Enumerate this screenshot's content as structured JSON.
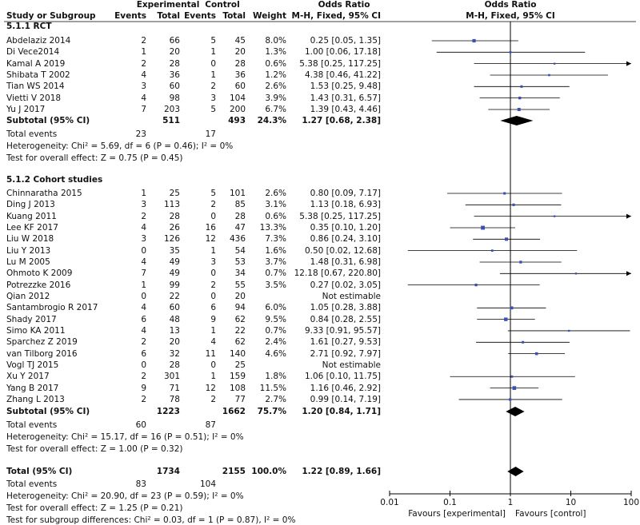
{
  "header": {
    "group_exp": "Experimental",
    "group_ctrl": "Control",
    "or_left": "Odds Ratio",
    "or_right": "Odds Ratio",
    "study": "Study or Subgroup",
    "events": "Events",
    "total": "Total",
    "weight": "Weight",
    "method": "M-H, Fixed, 95% CI"
  },
  "chart_data": {
    "type": "forest",
    "scale": "log",
    "xlim": [
      0.01,
      100
    ],
    "ticks": [
      "0.01",
      "0.1",
      "1",
      "10",
      "100"
    ],
    "xlabel_left": "Favours [experimental]",
    "xlabel_right": "Favours [control]",
    "subgroups": [
      {
        "title": "5.1.1 RCT",
        "studies": [
          {
            "name": "Abdelaziz 2014",
            "e_ev": "2",
            "e_tot": "66",
            "c_ev": "5",
            "c_tot": "45",
            "weight": "8.0%",
            "w": 8.0,
            "or": 0.25,
            "lo": 0.05,
            "hi": 1.35,
            "ci": "0.25 [0.05, 1.35]"
          },
          {
            "name": "Di Vece2014",
            "e_ev": "1",
            "e_tot": "20",
            "c_ev": "1",
            "c_tot": "20",
            "weight": "1.3%",
            "w": 1.3,
            "or": 1.0,
            "lo": 0.06,
            "hi": 17.18,
            "ci": "1.00 [0.06, 17.18]"
          },
          {
            "name": "Kamal A 2019",
            "e_ev": "2",
            "e_tot": "28",
            "c_ev": "0",
            "c_tot": "28",
            "weight": "0.6%",
            "w": 0.6,
            "or": 5.38,
            "lo": 0.25,
            "hi": 117.25,
            "ci": "5.38 [0.25, 117.25]"
          },
          {
            "name": "Shibata T 2002",
            "e_ev": "4",
            "e_tot": "36",
            "c_ev": "1",
            "c_tot": "36",
            "weight": "1.2%",
            "w": 1.2,
            "or": 4.38,
            "lo": 0.46,
            "hi": 41.22,
            "ci": "4.38 [0.46, 41.22]"
          },
          {
            "name": "Tian WS 2014",
            "e_ev": "3",
            "e_tot": "60",
            "c_ev": "2",
            "c_tot": "60",
            "weight": "2.6%",
            "w": 2.6,
            "or": 1.53,
            "lo": 0.25,
            "hi": 9.48,
            "ci": "1.53 [0.25, 9.48]"
          },
          {
            "name": "Vietti V 2018",
            "e_ev": "4",
            "e_tot": "98",
            "c_ev": "3",
            "c_tot": "104",
            "weight": "3.9%",
            "w": 3.9,
            "or": 1.43,
            "lo": 0.31,
            "hi": 6.57,
            "ci": "1.43 [0.31, 6.57]"
          },
          {
            "name": "Yu J 2017",
            "e_ev": "7",
            "e_tot": "203",
            "c_ev": "5",
            "c_tot": "200",
            "weight": "6.7%",
            "w": 6.7,
            "or": 1.39,
            "lo": 0.43,
            "hi": 4.46,
            "ci": "1.39 [0.43, 4.46]"
          }
        ],
        "subtotal": {
          "label": "Subtotal (95% CI)",
          "e_tot": "511",
          "c_tot": "493",
          "weight": "24.3%",
          "or": 1.27,
          "lo": 0.68,
          "hi": 2.38,
          "ci": "1.27 [0.68, 2.38]"
        },
        "events_label": "Total events",
        "e_events": "23",
        "c_events": "17",
        "heterogeneity": "Heterogeneity: Chi² = 5.69, df = 6 (P = 0.46); I² = 0%",
        "overall": "Test for overall effect: Z = 0.75 (P = 0.45)"
      },
      {
        "title": "5.1.2 Cohort studies",
        "studies": [
          {
            "name": "Chinnaratha 2015",
            "e_ev": "1",
            "e_tot": "25",
            "c_ev": "5",
            "c_tot": "101",
            "weight": "2.6%",
            "w": 2.6,
            "or": 0.8,
            "lo": 0.09,
            "hi": 7.17,
            "ci": "0.80 [0.09, 7.17]"
          },
          {
            "name": "Ding J 2013",
            "e_ev": "3",
            "e_tot": "113",
            "c_ev": "2",
            "c_tot": "85",
            "weight": "3.1%",
            "w": 3.1,
            "or": 1.13,
            "lo": 0.18,
            "hi": 6.93,
            "ci": "1.13 [0.18, 6.93]"
          },
          {
            "name": "Kuang 2011",
            "e_ev": "2",
            "e_tot": "28",
            "c_ev": "0",
            "c_tot": "28",
            "weight": "0.6%",
            "w": 0.6,
            "or": 5.38,
            "lo": 0.25,
            "hi": 117.25,
            "ci": "5.38 [0.25, 117.25]"
          },
          {
            "name": "Lee KF 2017",
            "e_ev": "4",
            "e_tot": "26",
            "c_ev": "16",
            "c_tot": "47",
            "weight": "13.3%",
            "w": 13.3,
            "or": 0.35,
            "lo": 0.1,
            "hi": 1.2,
            "ci": "0.35 [0.10, 1.20]"
          },
          {
            "name": "Liu W 2018",
            "e_ev": "3",
            "e_tot": "126",
            "c_ev": "12",
            "c_tot": "436",
            "weight": "7.3%",
            "w": 7.3,
            "or": 0.86,
            "lo": 0.24,
            "hi": 3.1,
            "ci": "0.86 [0.24, 3.10]"
          },
          {
            "name": "Liu Y 2013",
            "e_ev": "0",
            "e_tot": "35",
            "c_ev": "1",
            "c_tot": "54",
            "weight": "1.6%",
            "w": 1.6,
            "or": 0.5,
            "lo": 0.02,
            "hi": 12.68,
            "ci": "0.50 [0.02, 12.68]"
          },
          {
            "name": "Lu M 2005",
            "e_ev": "4",
            "e_tot": "49",
            "c_ev": "3",
            "c_tot": "53",
            "weight": "3.7%",
            "w": 3.7,
            "or": 1.48,
            "lo": 0.31,
            "hi": 6.98,
            "ci": "1.48 [0.31, 6.98]"
          },
          {
            "name": "Ohmoto K 2009",
            "e_ev": "7",
            "e_tot": "49",
            "c_ev": "0",
            "c_tot": "34",
            "weight": "0.7%",
            "w": 0.7,
            "or": 12.18,
            "lo": 0.67,
            "hi": 220.8,
            "ci": "12.18 [0.67, 220.80]"
          },
          {
            "name": "Potrezzke 2016",
            "e_ev": "1",
            "e_tot": "99",
            "c_ev": "2",
            "c_tot": "55",
            "weight": "3.5%",
            "w": 3.5,
            "or": 0.27,
            "lo": 0.02,
            "hi": 3.05,
            "ci": "0.27 [0.02, 3.05]"
          },
          {
            "name": "Qian 2012",
            "e_ev": "0",
            "e_tot": "22",
            "c_ev": "0",
            "c_tot": "20",
            "weight": "",
            "w": 0,
            "or": null,
            "lo": null,
            "hi": null,
            "ci": "Not estimable"
          },
          {
            "name": "Santambrogio R 2017",
            "e_ev": "4",
            "e_tot": "60",
            "c_ev": "6",
            "c_tot": "94",
            "weight": "6.0%",
            "w": 6.0,
            "or": 1.05,
            "lo": 0.28,
            "hi": 3.88,
            "ci": "1.05 [0.28, 3.88]"
          },
          {
            "name": "Shady 2017",
            "e_ev": "6",
            "e_tot": "48",
            "c_ev": "9",
            "c_tot": "62",
            "weight": "9.5%",
            "w": 9.5,
            "or": 0.84,
            "lo": 0.28,
            "hi": 2.55,
            "ci": "0.84 [0.28, 2.55]"
          },
          {
            "name": "Simo KA 2011",
            "e_ev": "4",
            "e_tot": "13",
            "c_ev": "1",
            "c_tot": "22",
            "weight": "0.7%",
            "w": 0.7,
            "or": 9.33,
            "lo": 0.91,
            "hi": 95.57,
            "ci": "9.33 [0.91, 95.57]"
          },
          {
            "name": "Sparchez Z 2019",
            "e_ev": "2",
            "e_tot": "20",
            "c_ev": "4",
            "c_tot": "62",
            "weight": "2.4%",
            "w": 2.4,
            "or": 1.61,
            "lo": 0.27,
            "hi": 9.53,
            "ci": "1.61 [0.27, 9.53]"
          },
          {
            "name": "van Tilborg 2016",
            "e_ev": "6",
            "e_tot": "32",
            "c_ev": "11",
            "c_tot": "140",
            "weight": "4.6%",
            "w": 4.6,
            "or": 2.71,
            "lo": 0.92,
            "hi": 7.97,
            "ci": "2.71 [0.92, 7.97]"
          },
          {
            "name": "Vogl TJ 2015",
            "e_ev": "0",
            "e_tot": "28",
            "c_ev": "0",
            "c_tot": "25",
            "weight": "",
            "w": 0,
            "or": null,
            "lo": null,
            "hi": null,
            "ci": "Not estimable"
          },
          {
            "name": "Xu Y 2017",
            "e_ev": "2",
            "e_tot": "301",
            "c_ev": "1",
            "c_tot": "159",
            "weight": "1.8%",
            "w": 1.8,
            "or": 1.06,
            "lo": 0.1,
            "hi": 11.75,
            "ci": "1.06 [0.10, 11.75]"
          },
          {
            "name": "Yang B 2017",
            "e_ev": "9",
            "e_tot": "71",
            "c_ev": "12",
            "c_tot": "108",
            "weight": "11.5%",
            "w": 11.5,
            "or": 1.16,
            "lo": 0.46,
            "hi": 2.92,
            "ci": "1.16 [0.46, 2.92]"
          },
          {
            "name": "Zhang L 2013",
            "e_ev": "2",
            "e_tot": "78",
            "c_ev": "2",
            "c_tot": "77",
            "weight": "2.7%",
            "w": 2.7,
            "or": 0.99,
            "lo": 0.14,
            "hi": 7.19,
            "ci": "0.99 [0.14, 7.19]"
          }
        ],
        "subtotal": {
          "label": "Subtotal (95% CI)",
          "e_tot": "1223",
          "c_tot": "1662",
          "weight": "75.7%",
          "or": 1.2,
          "lo": 0.84,
          "hi": 1.71,
          "ci": "1.20 [0.84, 1.71]"
        },
        "events_label": "Total events",
        "e_events": "60",
        "c_events": "87",
        "heterogeneity": "Heterogeneity: Chi² = 15.17, df = 16 (P = 0.51); I² = 0%",
        "overall": "Test for overall effect: Z = 1.00 (P = 0.32)"
      }
    ],
    "total": {
      "label": "Total (95% CI)",
      "e_tot": "1734",
      "c_tot": "2155",
      "weight": "100.0%",
      "or": 1.22,
      "lo": 0.89,
      "hi": 1.66,
      "ci": "1.22 [0.89, 1.66]",
      "events_label": "Total events",
      "e_events": "83",
      "c_events": "104",
      "heterogeneity": "Heterogeneity: Chi² = 20.90, df = 23 (P = 0.59); I² = 0%",
      "overall": "Test for overall effect: Z = 1.25 (P = 0.21)",
      "subgroup_diff": "Test for subgroup differences: Chi² = 0.03, df = 1 (P = 0.87), I² = 0%"
    }
  },
  "colors": {
    "square": "#3b4fb8",
    "line": "#000000"
  }
}
